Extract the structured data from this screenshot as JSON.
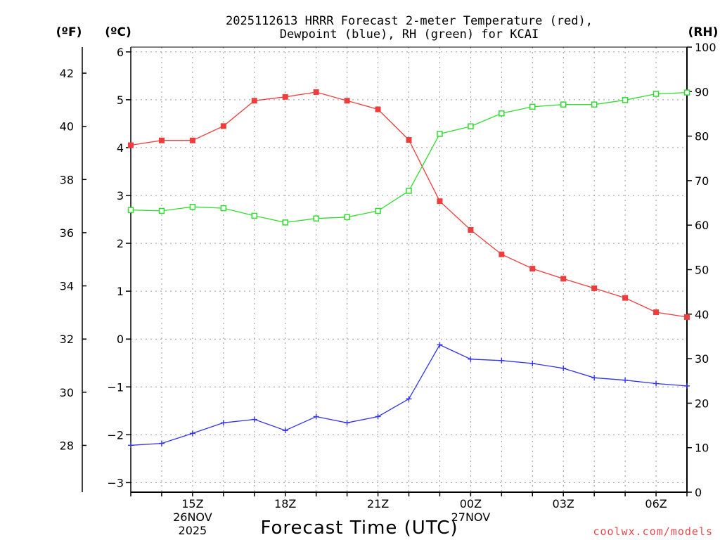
{
  "chart_data": {
    "type": "line",
    "title_lines": [
      "2025112613 HRRR Forecast 2-meter Temperature (red),",
      "Dewpoint (blue), RH (green) for KCAI"
    ],
    "xlabel": "Forecast Time (UTC)",
    "units": {
      "fahrenheit": "(ºF)",
      "celsius": "(ºC)",
      "rh": "(RH)"
    },
    "x_hours": [
      13,
      14,
      15,
      16,
      17,
      18,
      19,
      20,
      21,
      22,
      23,
      24,
      25,
      26,
      27,
      28,
      29,
      30,
      31
    ],
    "xlim": [
      13,
      31
    ],
    "x_ticks": [
      {
        "hour": 15,
        "lines": [
          "15Z",
          "26NOV",
          "2025"
        ]
      },
      {
        "hour": 18,
        "lines": [
          "18Z"
        ]
      },
      {
        "hour": 21,
        "lines": [
          "21Z"
        ]
      },
      {
        "hour": 24,
        "lines": [
          "00Z",
          "27NOV"
        ]
      },
      {
        "hour": 27,
        "lines": [
          "03Z"
        ]
      },
      {
        "hour": 30,
        "lines": [
          "06Z"
        ]
      }
    ],
    "celsius_axis": {
      "ylim": [
        -3.2,
        6.1
      ],
      "ticks": [
        -3,
        -2,
        -1,
        0,
        1,
        2,
        3,
        4,
        5,
        6
      ]
    },
    "fahrenheit_axis": {
      "ticks": [
        28,
        30,
        32,
        34,
        36,
        38,
        40,
        42
      ]
    },
    "rh_axis": {
      "ylim": [
        0,
        100
      ],
      "ticks": [
        0,
        10,
        20,
        30,
        40,
        50,
        60,
        70,
        80,
        90,
        100
      ]
    },
    "series": [
      {
        "name": "2-meter Temperature",
        "axis": "celsius",
        "color": "#f03c3c",
        "marker": "filled-square",
        "values": [
          4.05,
          4.15,
          4.15,
          4.45,
          4.98,
          5.06,
          5.16,
          4.98,
          4.8,
          4.16,
          2.88,
          2.28,
          1.77,
          1.47,
          1.26,
          1.06,
          0.86,
          0.56,
          0.46
        ]
      },
      {
        "name": "Dewpoint",
        "axis": "celsius",
        "color": "#3232f0",
        "marker": "plus",
        "values": [
          -2.22,
          -2.18,
          -1.97,
          -1.75,
          -1.68,
          -1.91,
          -1.62,
          -1.75,
          -1.62,
          -1.25,
          -0.12,
          -0.42,
          -0.45,
          -0.51,
          -0.61,
          -0.81,
          -0.86,
          -0.93,
          -0.98
        ]
      },
      {
        "name": "RH",
        "axis": "rh",
        "color": "#32dc32",
        "marker": "open-square",
        "values": [
          63.4,
          63.2,
          64.1,
          63.8,
          62.1,
          60.6,
          61.5,
          61.8,
          63.2,
          67.7,
          80.5,
          82.2,
          85.1,
          86.6,
          87.1,
          87.1,
          88.1,
          89.5,
          89.8
        ]
      }
    ]
  },
  "credit": {
    "text": "coolwx.com/models",
    "color": "#e8464b"
  }
}
